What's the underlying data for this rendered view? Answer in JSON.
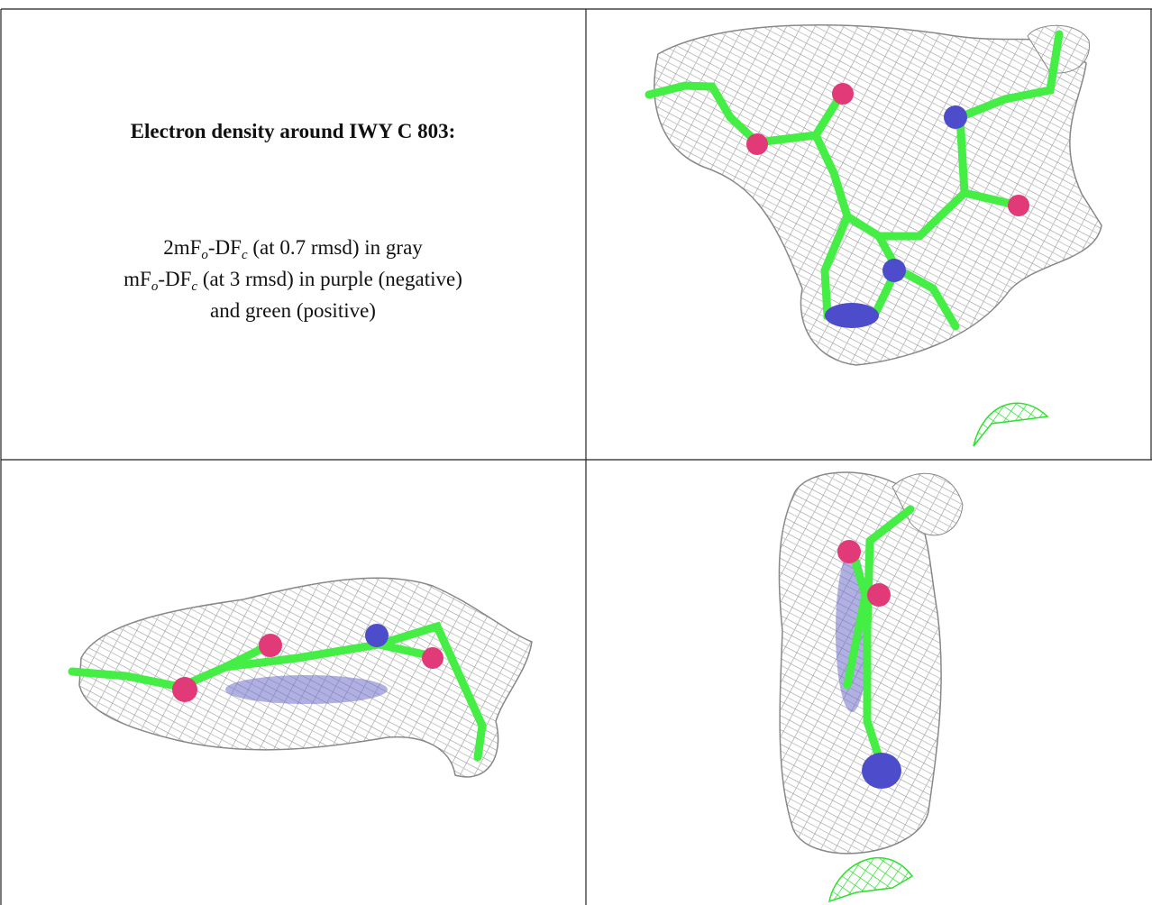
{
  "legend": {
    "title": "Electron density around IWY C 803:",
    "lines": [
      [
        "2mF",
        "o",
        "-DF",
        "c",
        " (at 0.7 rmsd) in gray"
      ],
      [
        "mF",
        "o",
        "-DF",
        "c",
        " (at 3 rmsd) in purple (negative)"
      ],
      [
        "and green (positive)"
      ]
    ]
  }
}
